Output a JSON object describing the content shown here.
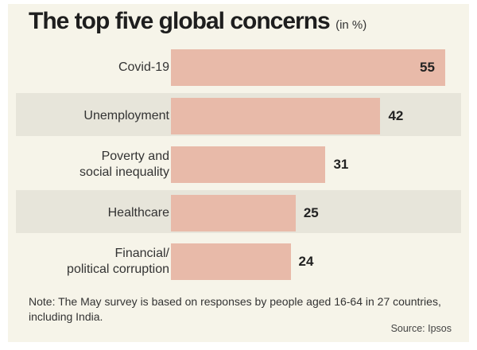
{
  "chart_data": {
    "type": "bar",
    "orientation": "horizontal",
    "title": "The top five global concerns",
    "unit": "(in %)",
    "categories": [
      "Covid-19",
      "Unemployment",
      "Poverty and social inequality",
      "Healthcare",
      "Financial/ political corruption"
    ],
    "category_lines": [
      [
        "Covid-19"
      ],
      [
        "Unemployment"
      ],
      [
        "Poverty and",
        "social inequality"
      ],
      [
        "Healthcare"
      ],
      [
        "Financial/",
        "political corruption"
      ]
    ],
    "values": [
      55,
      42,
      31,
      25,
      24
    ],
    "value_labels": [
      "55",
      "42",
      "31",
      "25",
      "24"
    ],
    "bar_color": "#e8baa9",
    "note": "Note: The May survey is based on responses by people aged 16-64 in 27 countries, including India.",
    "source": "Source: Ipsos"
  }
}
